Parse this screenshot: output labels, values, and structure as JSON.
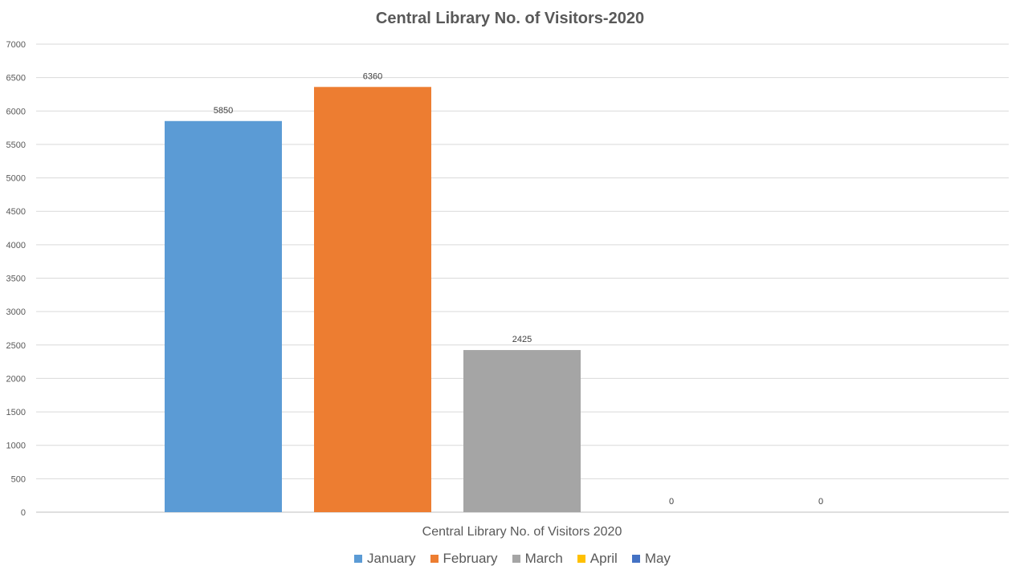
{
  "chart_data": {
    "type": "bar",
    "title": "Central Library No. of Visitors-2020",
    "categories": [
      "Central Library No. of Visitors 2020"
    ],
    "series": [
      {
        "name": "January",
        "color": "#5B9BD5",
        "values": [
          5850
        ]
      },
      {
        "name": "February",
        "color": "#ED7D31",
        "values": [
          6360
        ]
      },
      {
        "name": "March",
        "color": "#A5A5A5",
        "values": [
          2425
        ]
      },
      {
        "name": "April",
        "color": "#FFC000",
        "values": [
          0
        ]
      },
      {
        "name": "May",
        "color": "#4472C4",
        "values": [
          0
        ]
      }
    ],
    "yticks": [
      "0",
      "500",
      "1000",
      "1500",
      "2000",
      "2500",
      "3000",
      "3500",
      "4000",
      "4500",
      "5000",
      "5500",
      "6000",
      "6500",
      "7000"
    ],
    "ylim": [
      0,
      7000
    ],
    "grid": true,
    "legend_position": "bottom"
  }
}
